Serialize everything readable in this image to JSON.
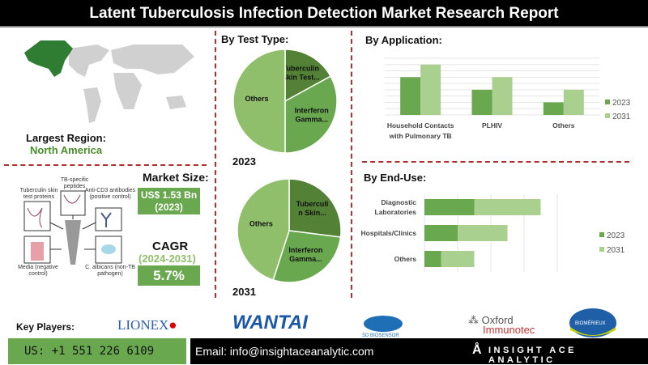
{
  "title": "Latent Tuberculosis Infection Detection Market Research Report",
  "region": {
    "label": "Largest Region:",
    "value": "North America"
  },
  "market_size": {
    "label": "Market Size:",
    "value": "US$ 1.53 Bn",
    "year": "(2023)"
  },
  "cagr": {
    "label": "CAGR",
    "period": "(2024-2031)",
    "value": "5.7%"
  },
  "diagram_labels": [
    "Tuberculin skin test proteins",
    "TB-specific peptides",
    "Anti-CD3 antibodies (positive control)",
    "Media (negative control)",
    "C. albicans (non-TB pathogen)"
  ],
  "colors": {
    "dark": "#538135",
    "mid": "#6aa84f",
    "light": "#a9d08e",
    "others": "#8fbf6a",
    "red": "#b03030"
  },
  "chart_data": [
    {
      "type": "pie",
      "title": "By Test Type:",
      "subtitle": "2023",
      "labels": [
        "Tuberculin Skin Test...",
        "Interferon Gamma...",
        "Others"
      ],
      "values": [
        17,
        33,
        50
      ]
    },
    {
      "type": "pie",
      "title": "By Test Type:",
      "subtitle": "2031",
      "labels": [
        "Tuberculi n Skin...",
        "Interferon Gamma...",
        "Others"
      ],
      "values": [
        27,
        28,
        45
      ]
    },
    {
      "type": "bar",
      "title": "By Application:",
      "categories": [
        "Household Contacts with Pulmonary TB",
        "PLHIV",
        "Others"
      ],
      "series": [
        {
          "name": "2023",
          "values": [
            6,
            4,
            2
          ]
        },
        {
          "name": "2031",
          "values": [
            8,
            6,
            4
          ]
        }
      ],
      "ylim": [
        0,
        9
      ],
      "grid": true,
      "legend": "right"
    },
    {
      "type": "bar",
      "orientation": "horizontal",
      "stacked": true,
      "title": "By End-Use:",
      "categories": [
        "Diagnostic Laboratories",
        "Hospitals/Clinics",
        "Others"
      ],
      "series": [
        {
          "name": "2023",
          "values": [
            1.5,
            1.0,
            0.5
          ]
        },
        {
          "name": "2031",
          "values": [
            2.0,
            1.5,
            1.0
          ]
        }
      ],
      "xlim": [
        0,
        4
      ],
      "grid": true,
      "legend": "right"
    }
  ],
  "key_players": {
    "label": "Key Players:",
    "logos": [
      "LIONEX Diagnostics and Therapeutics",
      "WANTAI",
      "SD BIOSENSOR",
      "Oxford Immunotec",
      "BIOMÉRIEUX"
    ]
  },
  "footer": {
    "phone": "US: +1 551 226 6109",
    "email": "Email: info@insightaceanalytic.com",
    "brand": "INSIGHT ACE ANALYTIC"
  }
}
